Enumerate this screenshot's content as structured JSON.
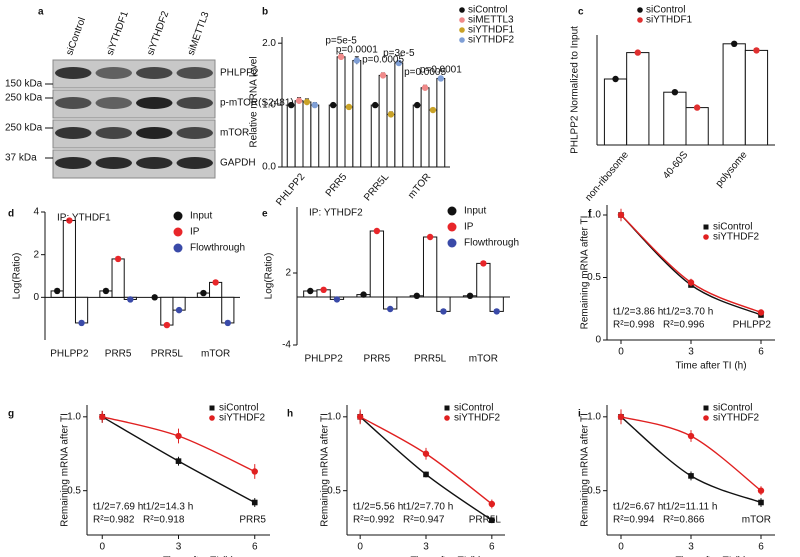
{
  "blot": {
    "panel": "a",
    "lanes": [
      "siControl",
      "siYTHDF1",
      "siYTHDF2",
      "siMETTL3"
    ],
    "bands": [
      {
        "label": "PHLPP2",
        "marker": "150 kDa"
      },
      {
        "label": "p-mTOR(S2481)",
        "marker": "250 kDa"
      },
      {
        "label": "mTOR",
        "marker": "250 kDa"
      },
      {
        "label": "GAPDH",
        "marker": "37 kDa"
      }
    ]
  },
  "chart_data": [
    {
      "panel": "b",
      "type": "bar",
      "ylabel": "Relative mRNA level",
      "categories": [
        "PHLPP2",
        "PRR5",
        "PRR5L",
        "mTOR"
      ],
      "series": [
        {
          "name": "siControl",
          "color": "#111111",
          "values": [
            1.0,
            1.0,
            1.0,
            1.0
          ],
          "errors": [
            0.03,
            0.02,
            0.02,
            0.02
          ]
        },
        {
          "name": "siMETTL3",
          "color": "#f08a8a",
          "values": [
            1.07,
            1.78,
            1.48,
            1.28
          ],
          "errors": [
            0.05,
            0.05,
            0.04,
            0.04
          ]
        },
        {
          "name": "siYTHDF1",
          "color": "#c9a227",
          "values": [
            1.05,
            0.97,
            0.85,
            0.92
          ],
          "errors": [
            0.05,
            0.03,
            0.04,
            0.03
          ]
        },
        {
          "name": "siYTHDF2",
          "color": "#7f9fd6",
          "values": [
            1.0,
            1.72,
            1.68,
            1.43
          ],
          "errors": [
            0.04,
            0.06,
            0.04,
            0.03
          ]
        }
      ],
      "annotations": [
        "p=5e-5",
        "p=0.0001",
        "p=0.0005",
        "p=3e-5",
        "p=0.0005",
        "p=0.0001"
      ],
      "ylim": [
        0,
        2.1
      ],
      "yticks": [
        {
          "value": 0,
          "label": "0.0"
        },
        {
          "value": 1,
          "label": "1.0"
        },
        {
          "value": 2,
          "label": "2.0"
        }
      ]
    },
    {
      "panel": "c",
      "type": "bar",
      "ylabel": "PHLPP2 Normalized to Input",
      "categories": [
        "non-ribosome",
        "40-60S",
        "polysome"
      ],
      "series": [
        {
          "name": "siControl",
          "color": "#111111",
          "values": [
            0.3,
            0.24,
            0.46
          ]
        },
        {
          "name": "siYTHDF1",
          "color": "#e03030",
          "values": [
            0.42,
            0.17,
            0.43
          ]
        }
      ],
      "ylim": [
        0,
        0.5
      ]
    },
    {
      "panel": "d",
      "type": "bar",
      "title": "IP: YTHDF1",
      "ylabel": "Log(Ratio)",
      "categories": [
        "PHLPP2",
        "PRR5",
        "PRR5L",
        "mTOR"
      ],
      "series": [
        {
          "name": "Input",
          "color": "#111111",
          "values": [
            0.3,
            0.3,
            0.0,
            0.2
          ]
        },
        {
          "name": "IP",
          "color": "#e8262a",
          "values": [
            3.6,
            1.8,
            -1.3,
            0.7
          ]
        },
        {
          "name": "Flowthrough",
          "color": "#3a4aa8",
          "values": [
            -1.2,
            -0.1,
            -0.6,
            -1.2
          ]
        }
      ],
      "zero_line": true,
      "ylim": [
        -2,
        4
      ],
      "yticks": [
        0,
        2,
        4
      ]
    },
    {
      "panel": "e",
      "type": "bar",
      "title": "IP: YTHDF2",
      "ylabel": "Log(Ratio)",
      "categories": [
        "PHLPP2",
        "PRR5",
        "PRR5L",
        "mTOR"
      ],
      "series": [
        {
          "name": "Input",
          "color": "#111111",
          "values": [
            0.5,
            0.2,
            0.1,
            0.1
          ]
        },
        {
          "name": "IP",
          "color": "#e8262a",
          "values": [
            0.6,
            5.5,
            5.0,
            2.8
          ]
        },
        {
          "name": "Flowthrough",
          "color": "#3a4aa8",
          "values": [
            -0.2,
            -1.0,
            -1.2,
            -1.2
          ]
        }
      ],
      "zero_line": true,
      "ylim": [
        -4,
        7.5
      ],
      "yticks": [
        -4,
        2
      ]
    },
    {
      "panel": "f",
      "type": "line",
      "xlabel": "Time after TI (h)",
      "ylabel": "Remaining mRNA after TI",
      "gene": "PHLPP2",
      "x": [
        0,
        3,
        6
      ],
      "series": [
        {
          "name": "siControl",
          "color": "#111111",
          "marker": "square",
          "values": [
            1.0,
            0.44,
            0.2
          ],
          "errors": [
            0.04,
            0.02,
            0.02
          ],
          "half_life_label": "t1/2=3.86 h",
          "r2_label": "R²=0.998"
        },
        {
          "name": "siYTHDF2",
          "color": "#e02020",
          "marker": "circle",
          "values": [
            1.0,
            0.46,
            0.22
          ],
          "errors": [
            0.05,
            0.03,
            0.02
          ],
          "half_life_label": "t1/2=3.70 h",
          "r2_label": "R²=0.996"
        }
      ],
      "xlim": [
        -0.6,
        6.6
      ],
      "xticks": [
        0,
        3,
        6
      ],
      "ylim": [
        0,
        1.08
      ],
      "yticks": [
        0,
        0.5,
        {
          "value": 1,
          "label": "1.0"
        }
      ]
    },
    {
      "panel": "g",
      "type": "line",
      "xlabel": "Time after TI (h)",
      "ylabel": "Remaining mRNA after TI",
      "gene": "PRR5",
      "x": [
        0,
        3,
        6
      ],
      "series": [
        {
          "name": "siControl",
          "color": "#111111",
          "marker": "square",
          "values": [
            1.0,
            0.7,
            0.42
          ],
          "errors": [
            0.04,
            0.03,
            0.03
          ],
          "half_life_label": "t1/2=7.69 h",
          "r2_label": "R²=0.982"
        },
        {
          "name": "siYTHDF2",
          "color": "#e02020",
          "marker": "circle",
          "values": [
            1.0,
            0.87,
            0.63
          ],
          "errors": [
            0.04,
            0.05,
            0.05
          ],
          "half_life_label": "t1/2=14.3 h",
          "r2_label": "R²=0.918"
        }
      ],
      "xlim": [
        -0.6,
        6.6
      ],
      "xticks": [
        0,
        3,
        6
      ],
      "ylim": [
        0.2,
        1.08
      ],
      "yticks": [
        0.5,
        {
          "value": 1,
          "label": "1.0"
        }
      ]
    },
    {
      "panel": "h",
      "type": "line",
      "xlabel": "Time after TI (h)",
      "ylabel": "Remaining mRNA after TI",
      "gene": "PRR5L",
      "x": [
        0,
        3,
        6
      ],
      "series": [
        {
          "name": "siControl",
          "color": "#111111",
          "marker": "square",
          "values": [
            1.0,
            0.61,
            0.3
          ],
          "errors": [
            0.04,
            0.02,
            0.02
          ],
          "half_life_label": "t1/2=5.56 h",
          "r2_label": "R²=0.992"
        },
        {
          "name": "siYTHDF2",
          "color": "#e02020",
          "marker": "circle",
          "values": [
            1.0,
            0.75,
            0.41
          ],
          "errors": [
            0.05,
            0.04,
            0.03
          ],
          "half_life_label": "t1/2=7.70 h",
          "r2_label": "R²=0.947"
        }
      ],
      "xlim": [
        -0.6,
        6.6
      ],
      "xticks": [
        0,
        3,
        6
      ],
      "ylim": [
        0.2,
        1.08
      ],
      "yticks": [
        0.5,
        {
          "value": 1,
          "label": "1.0"
        }
      ]
    },
    {
      "panel": "i",
      "type": "line",
      "xlabel": "Time after TI (h)",
      "ylabel": "Remaining mRNA after TI",
      "gene": "mTOR",
      "x": [
        0,
        3,
        6
      ],
      "series": [
        {
          "name": "siControl",
          "color": "#111111",
          "marker": "square",
          "values": [
            1.0,
            0.6,
            0.42
          ],
          "errors": [
            0.04,
            0.03,
            0.03
          ],
          "half_life_label": "t1/2=6.67 h",
          "r2_label": "R²=0.994"
        },
        {
          "name": "siYTHDF2",
          "color": "#e02020",
          "marker": "circle",
          "values": [
            1.0,
            0.87,
            0.5
          ],
          "errors": [
            0.05,
            0.04,
            0.03
          ],
          "half_life_label": "t1/2=11.11 h",
          "r2_label": "R²=0.866"
        }
      ],
      "xlim": [
        -0.6,
        6.6
      ],
      "xticks": [
        0,
        3,
        6
      ],
      "ylim": [
        0.2,
        1.08
      ],
      "yticks": [
        0.5,
        {
          "value": 1,
          "label": "1.0"
        }
      ]
    }
  ]
}
